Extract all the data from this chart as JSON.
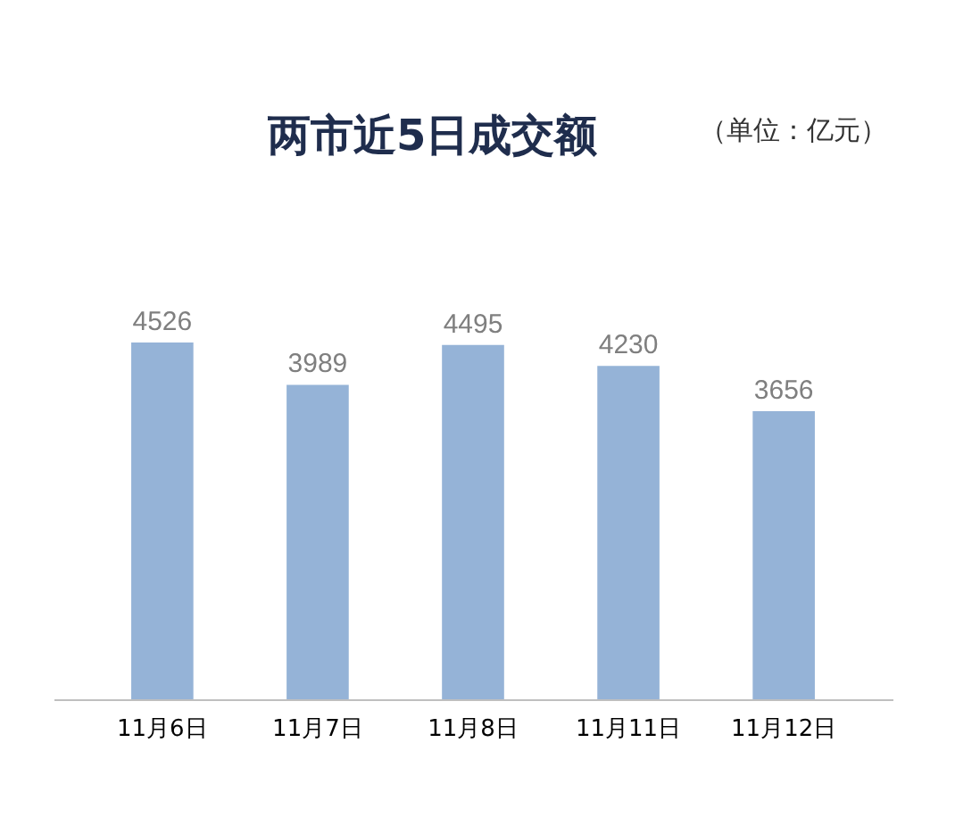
{
  "chart_data": {
    "type": "bar",
    "title": "两市近5日成交额",
    "annotations": [
      "（单位：亿元）"
    ],
    "categories": [
      "11月6日",
      "11月7日",
      "11月8日",
      "11月11日",
      "11月12日"
    ],
    "values": [
      4526,
      3989,
      4495,
      4230,
      3656
    ],
    "color": "#95b3d7",
    "data_labels": true
  }
}
